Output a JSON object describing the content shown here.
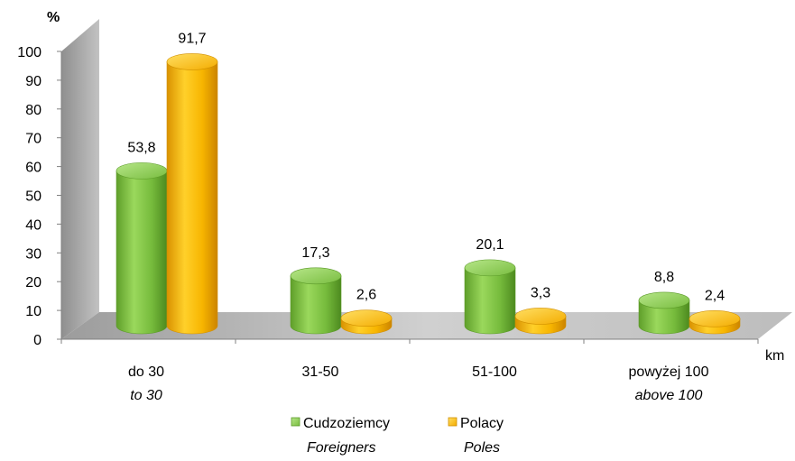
{
  "chart_data": {
    "type": "bar",
    "style": "3d-cylinder",
    "y_unit_label": "%",
    "x_unit_label": "km",
    "ylim": [
      0,
      100
    ],
    "y_ticks": [
      0,
      10,
      20,
      30,
      40,
      50,
      60,
      70,
      80,
      90,
      100
    ],
    "categories": [
      {
        "label": "do 30",
        "label_en": "to 30"
      },
      {
        "label": "31-50",
        "label_en": ""
      },
      {
        "label": "51-100",
        "label_en": ""
      },
      {
        "label": "powyżej 100",
        "label_en": "above 100"
      }
    ],
    "series": [
      {
        "name": "Cudzoziemcy",
        "name_en": "Foreigners",
        "color": "#7cc244",
        "values": [
          53.8,
          17.3,
          20.1,
          8.8
        ],
        "value_labels": [
          "53,8",
          "17,3",
          "20,1",
          "8,8"
        ]
      },
      {
        "name": "Polacy",
        "name_en": "Poles",
        "color": "#f5b800",
        "values": [
          91.7,
          2.6,
          3.3,
          2.4
        ],
        "value_labels": [
          "91,7",
          "2,6",
          "3,3",
          "2,4"
        ]
      }
    ],
    "grid": false,
    "legend_position": "bottom"
  }
}
